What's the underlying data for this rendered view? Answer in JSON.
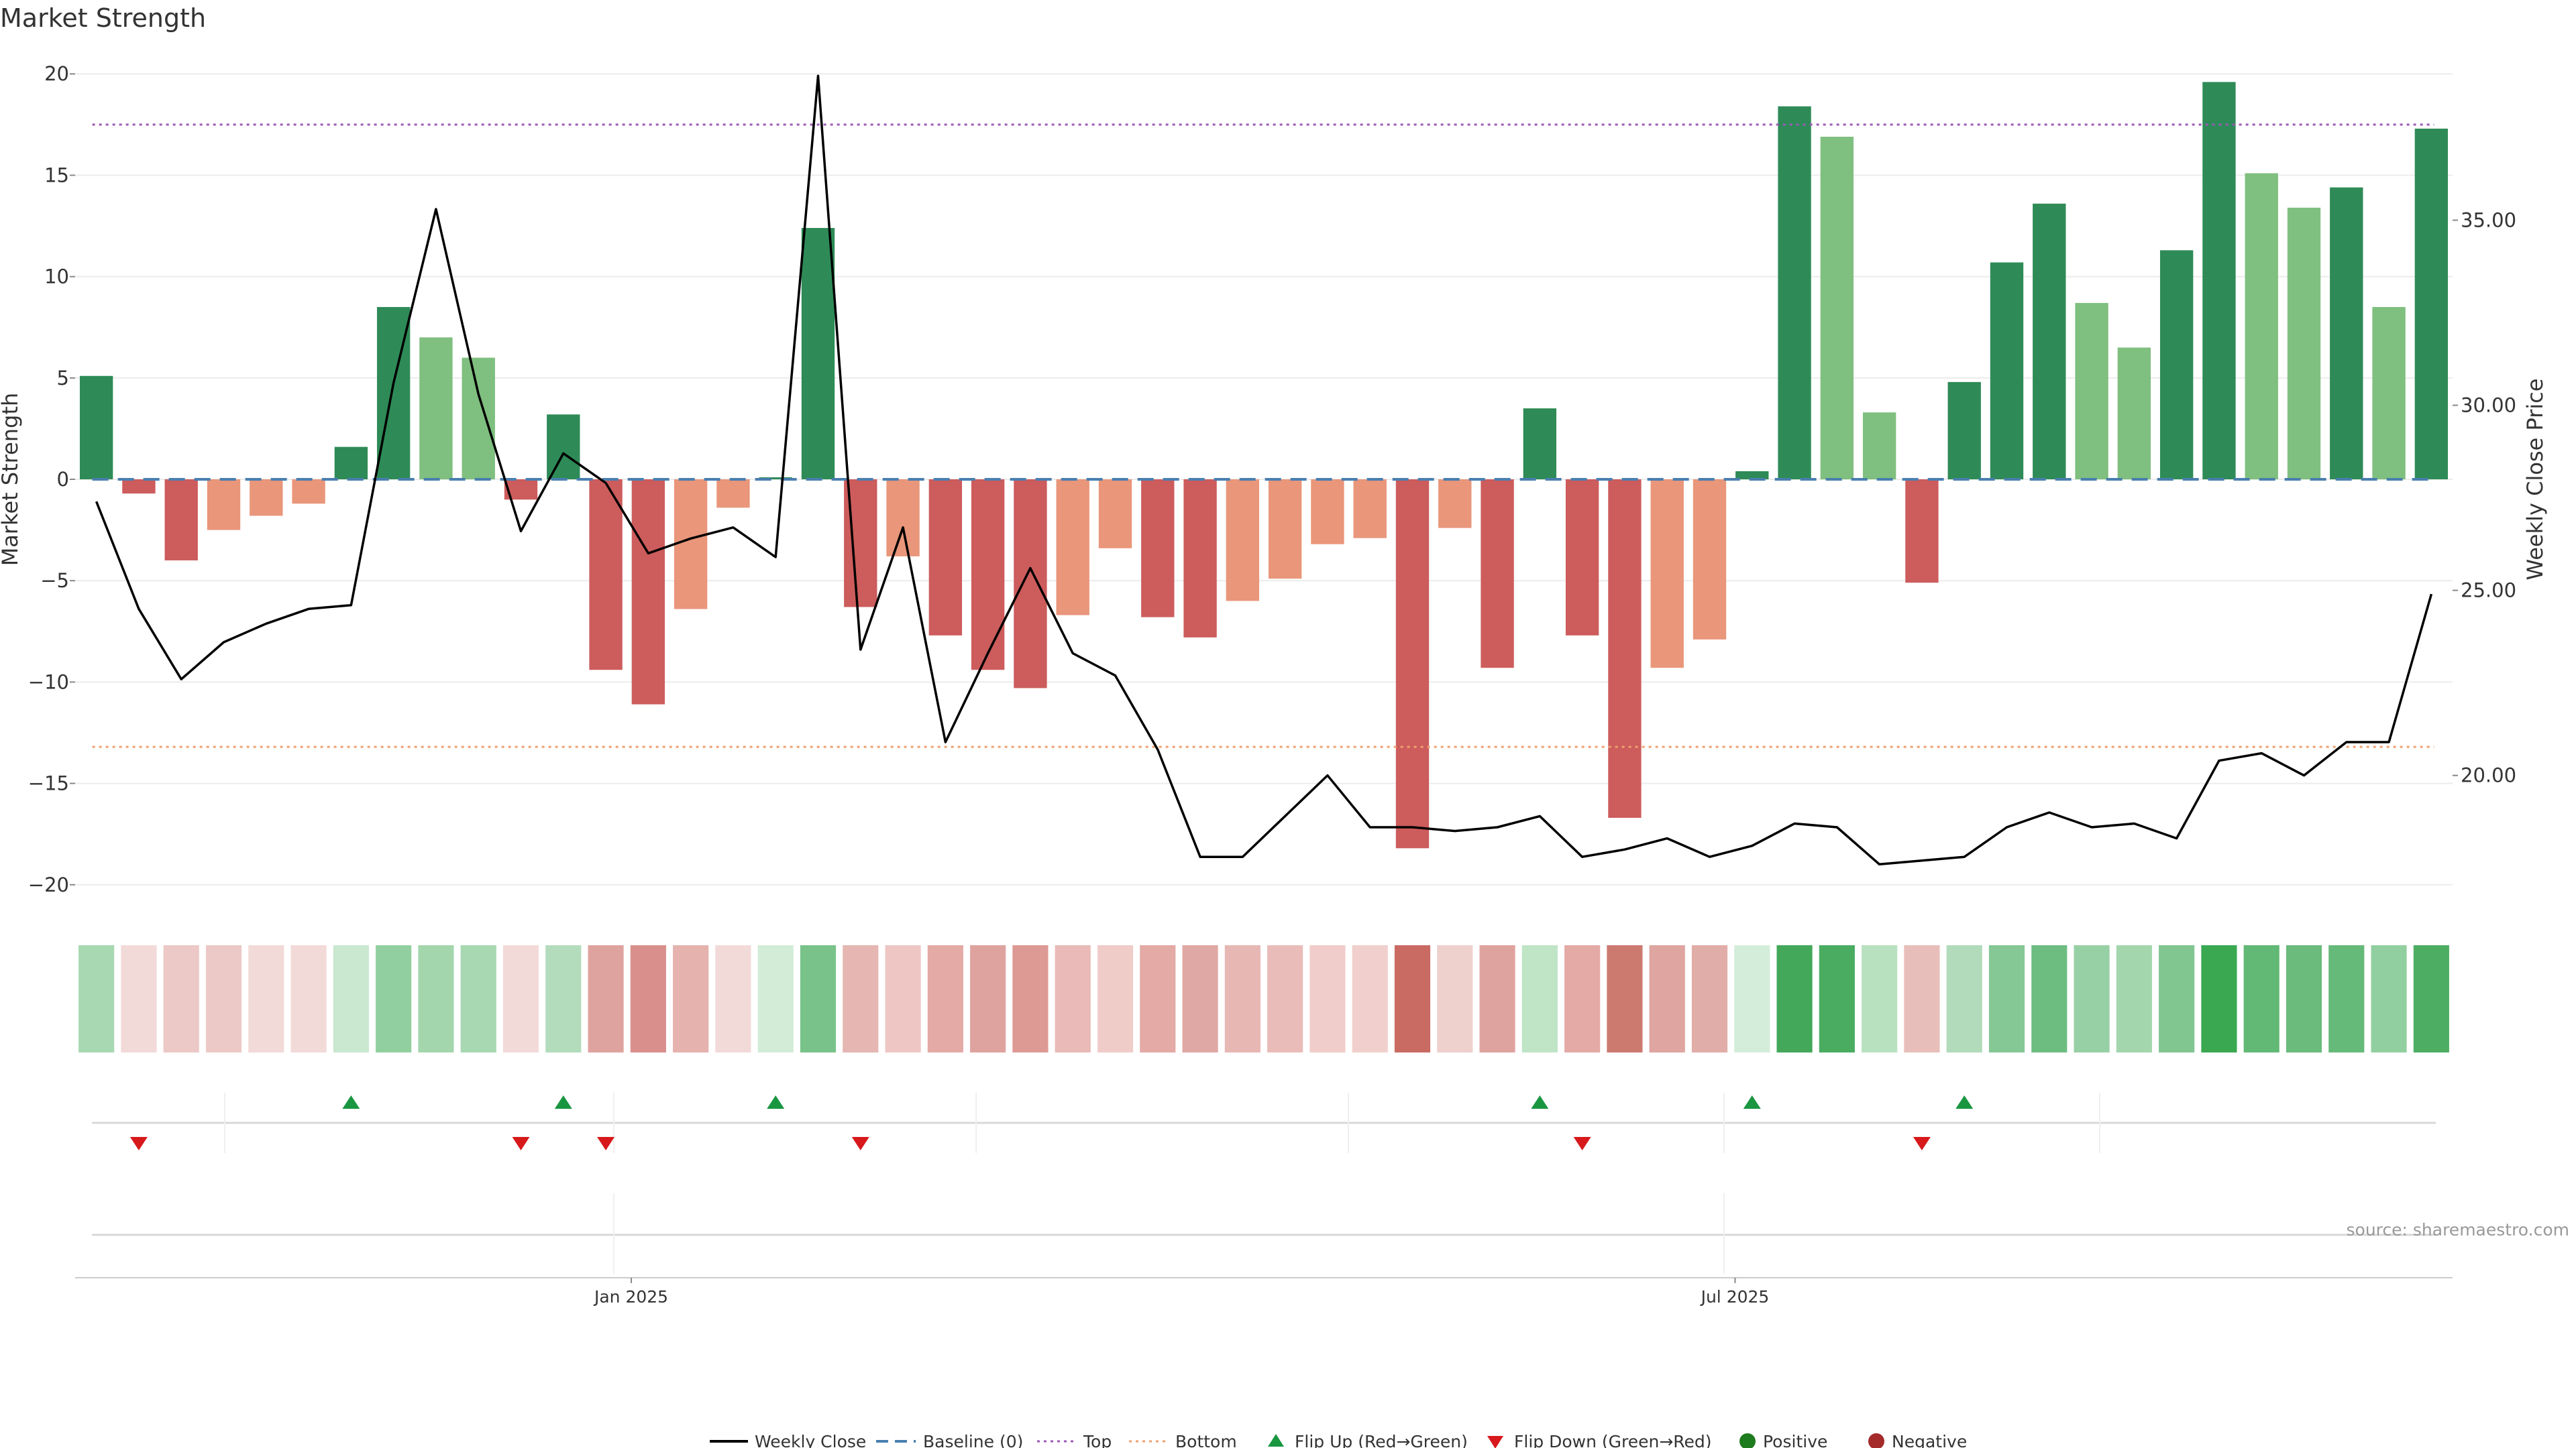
{
  "chart_data": {
    "type": "bar",
    "title": "Market Strength",
    "ylabel_left": "Market Strength",
    "ylabel_right": "Weekly Close Price",
    "source_note": "source: sharemaestro.com",
    "ylim_left": [
      -21,
      21
    ],
    "yticks_left": [
      20,
      15,
      10,
      5,
      0,
      -5,
      -10,
      -15,
      -20
    ],
    "ylim_right": [
      16.5,
      39.5
    ],
    "yticks_right": [
      {
        "value": 35,
        "label": "35.00"
      },
      {
        "value": 30,
        "label": "30.00"
      },
      {
        "value": 25,
        "label": "25.00"
      },
      {
        "value": 20,
        "label": "20.00"
      }
    ],
    "xticks": [
      {
        "label": "Jan 2025",
        "week_index": 12.6
      },
      {
        "label": "Jul 2025",
        "week_index": 38.6
      }
    ],
    "reference_lines": {
      "baseline": 0,
      "top": 17.5,
      "bottom": -13.2
    },
    "strength": [
      5.1,
      -0.7,
      -4.0,
      -2.5,
      -1.8,
      -1.2,
      1.6,
      8.5,
      7.0,
      6.0,
      -1.0,
      3.2,
      -9.4,
      -11.1,
      -6.4,
      -1.4,
      0.1,
      12.4,
      -6.3,
      -3.8,
      -7.7,
      -9.4,
      -10.3,
      -6.7,
      -3.4,
      -6.8,
      -7.8,
      -6.0,
      -4.9,
      -3.2,
      -2.9,
      -18.2,
      -2.4,
      -9.3,
      3.5,
      -7.7,
      -16.7,
      -9.3,
      -7.9,
      0.4,
      18.4,
      16.9,
      3.3,
      -5.1,
      4.8,
      10.7,
      13.6,
      8.7,
      6.5,
      11.3,
      19.6,
      15.1,
      13.4,
      14.4,
      8.5,
      17.3
    ],
    "weekly_close": [
      27.4,
      24.5,
      22.6,
      23.6,
      24.1,
      24.5,
      24.6,
      30.6,
      35.3,
      30.3,
      26.6,
      28.7,
      27.9,
      26.0,
      26.4,
      26.7,
      25.9,
      38.9,
      23.4,
      26.7,
      20.9,
      23.3,
      25.6,
      23.3,
      22.7,
      20.7,
      17.8,
      17.8,
      18.9,
      20.0,
      18.6,
      18.6,
      18.5,
      18.6,
      18.9,
      17.8,
      18.0,
      18.3,
      17.8,
      18.1,
      18.7,
      18.6,
      17.6,
      17.7,
      17.8,
      18.6,
      19.0,
      18.6,
      18.7,
      18.3,
      20.4,
      20.6,
      20.0,
      20.9,
      20.9,
      24.9
    ],
    "strength_colors": [
      "#2e8b57",
      "#cd5c5c",
      "#cd5c5c",
      "#e9967a",
      "#e9967a",
      "#e9967a",
      "#2e8b57",
      "#2e8b57",
      "#7fbf7f",
      "#7fbf7f",
      "#cd5c5c",
      "#2e8b57",
      "#cd5c5c",
      "#cd5c5c",
      "#e9967a",
      "#e9967a",
      "#2e8b57",
      "#2e8b57",
      "#cd5c5c",
      "#e9967a",
      "#cd5c5c",
      "#cd5c5c",
      "#cd5c5c",
      "#e9967a",
      "#e9967a",
      "#cd5c5c",
      "#cd5c5c",
      "#e9967a",
      "#e9967a",
      "#e9967a",
      "#e9967a",
      "#cd5c5c",
      "#e9967a",
      "#cd5c5c",
      "#2e8b57",
      "#cd5c5c",
      "#cd5c5c",
      "#e9967a",
      "#e9967a",
      "#2e8b57",
      "#2e8b57",
      "#7fbf7f",
      "#7fbf7f",
      "#cd5c5c",
      "#2e8b57",
      "#2e8b57",
      "#2e8b57",
      "#7fbf7f",
      "#7fbf7f",
      "#2e8b57",
      "#2e8b57",
      "#7fbf7f",
      "#7fbf7f",
      "#2e8b57",
      "#7fbf7f",
      "#2e8b57"
    ],
    "heatmap_colors": [
      "#a8d8b2",
      "#f2dad8",
      "#ecc9c6",
      "#ecc9c6",
      "#f2dad8",
      "#f2dad8",
      "#c9e8cf",
      "#92cfa0",
      "#a3d6ad",
      "#a8d8b2",
      "#f2dad8",
      "#b3dcbc",
      "#dfa39f",
      "#d98f8b",
      "#e5b2ae",
      "#f2dad8",
      "#d2ecd7",
      "#79c38a",
      "#e5b6b2",
      "#eec7c4",
      "#e3aaa6",
      "#dfa39f",
      "#dd9994",
      "#e9bab7",
      "#f0ccc9",
      "#e3aaa6",
      "#e0a8a4",
      "#e7b7b4",
      "#eabcb9",
      "#f0cdca",
      "#f0cfcc",
      "#c96b63",
      "#eed0cd",
      "#dfa39f",
      "#bfe4c6",
      "#e3aaa6",
      "#cc7a70",
      "#dea5a1",
      "#e1ada9",
      "#d4edda",
      "#43a85a",
      "#4aac61",
      "#b8e1c0",
      "#e8bebb",
      "#b1dbba",
      "#86c796",
      "#6dbd80",
      "#98d0a5",
      "#a3d6ad",
      "#81c591",
      "#39a851",
      "#62b875",
      "#6abb7c",
      "#66ba79",
      "#92cfa0",
      "#4dae63"
    ],
    "flip_up_weeks": [
      6,
      11,
      16,
      34,
      39,
      44
    ],
    "flip_down_weeks": [
      1,
      10,
      12,
      18,
      35,
      43
    ],
    "marker_colors": {
      "flip_up": "#1a9641",
      "flip_down": "#d7191c",
      "positive": "#1e7b1e",
      "negative": "#a52a2a"
    },
    "line_colors": {
      "weekly_close": "#000000",
      "baseline": "#4a7fb0",
      "top": "#9b59b6",
      "bottom": "#f0a070"
    },
    "grid": true,
    "legend": {
      "position": "bottom-center",
      "items": [
        {
          "label": "Weekly Close",
          "kind": "line"
        },
        {
          "label": "Baseline (0)",
          "kind": "dash"
        },
        {
          "label": "Top",
          "kind": "dot"
        },
        {
          "label": "Bottom",
          "kind": "dot"
        },
        {
          "label": "Flip Up (Red→Green)",
          "kind": "tri-up"
        },
        {
          "label": "Flip Down (Green→Red)",
          "kind": "tri-down"
        },
        {
          "label": "Positive",
          "kind": "circle"
        },
        {
          "label": "Negative",
          "kind": "circle"
        }
      ]
    }
  }
}
